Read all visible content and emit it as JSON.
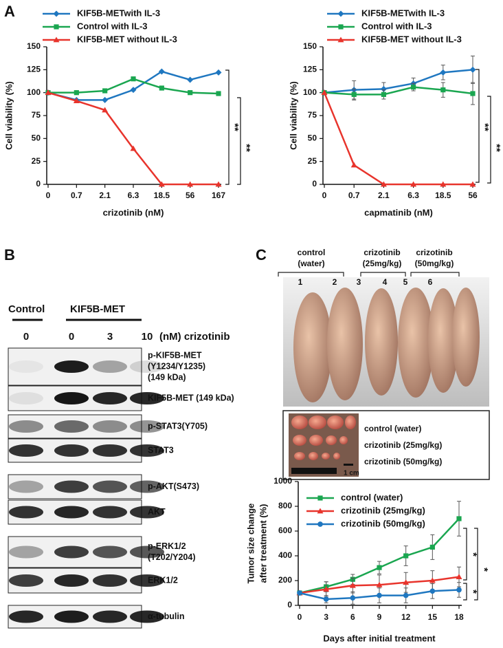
{
  "panel_labels": [
    "A",
    "B",
    "C"
  ],
  "chart_data": [
    {
      "type": "line",
      "xlabel": "crizotinib (nM)",
      "ylabel": "Cell viability (%)",
      "categories": [
        "0",
        "0.7",
        "2.1",
        "6.3",
        "18.5",
        "56",
        "167"
      ],
      "ylim": [
        0,
        150
      ],
      "yticks": [
        0,
        25,
        50,
        75,
        100,
        125,
        150
      ],
      "series": [
        {
          "name": "KIF5B-METwith IL-3",
          "color": "#1f77c0",
          "marker": "diamond",
          "values": [
            100,
            92,
            92,
            103,
            123,
            114,
            122
          ]
        },
        {
          "name": "Control with IL-3",
          "color": "#1aa650",
          "marker": "square",
          "values": [
            100,
            100,
            102,
            115,
            105,
            100,
            99
          ]
        },
        {
          "name": "KIF5B-MET without IL-3",
          "color": "#e8342c",
          "marker": "triangle",
          "values": [
            100,
            91,
            81,
            39,
            0,
            0,
            0
          ]
        }
      ],
      "annotations": [
        "**",
        "**"
      ]
    },
    {
      "type": "line",
      "xlabel": "capmatinib (nM)",
      "ylabel": "Cell viability (%)",
      "categories": [
        "0",
        "0.7",
        "2.1",
        "6.3",
        "18.5",
        "56"
      ],
      "ylim": [
        0,
        150
      ],
      "yticks": [
        0,
        25,
        50,
        75,
        100,
        125,
        150
      ],
      "series": [
        {
          "name": "KIF5B-METwith IL-3",
          "color": "#1f77c0",
          "marker": "diamond",
          "values": [
            100,
            103,
            104,
            110,
            122,
            125
          ],
          "errors": [
            2,
            10,
            7,
            6,
            8,
            15
          ]
        },
        {
          "name": "Control with IL-3",
          "color": "#1aa650",
          "marker": "square",
          "values": [
            100,
            98,
            98,
            106,
            103,
            99
          ],
          "errors": [
            2,
            6,
            5,
            4,
            8,
            12
          ]
        },
        {
          "name": "KIF5B-MET without IL-3",
          "color": "#e8342c",
          "marker": "triangle",
          "values": [
            100,
            21,
            0,
            0,
            0,
            0
          ]
        }
      ],
      "annotations": [
        "**",
        "**"
      ]
    },
    {
      "type": "line",
      "xlabel": "Days after initial treatment",
      "ylabel": [
        "Tumor size change",
        "after treatment (%)"
      ],
      "x": [
        0,
        3,
        6,
        9,
        12,
        15,
        18
      ],
      "xlim": [
        0,
        18
      ],
      "xticks": [
        0,
        3,
        6,
        9,
        12,
        15,
        18
      ],
      "ylim": [
        0,
        1000
      ],
      "yticks": [
        0,
        200,
        400,
        600,
        800,
        1000
      ],
      "series": [
        {
          "name": "control (water)",
          "color": "#1aa650",
          "marker": "square",
          "values": [
            100,
            150,
            210,
            305,
            400,
            470,
            700
          ],
          "errors": [
            10,
            40,
            40,
            50,
            80,
            100,
            140
          ]
        },
        {
          "name": "crizotinib (25mg/kg)",
          "color": "#e8342c",
          "marker": "triangle",
          "values": [
            100,
            130,
            160,
            165,
            185,
            200,
            230
          ],
          "errors": [
            10,
            60,
            60,
            80,
            80,
            80,
            80
          ]
        },
        {
          "name": "crizotinib (50mg/kg)",
          "color": "#1f77c0",
          "marker": "circle",
          "values": [
            100,
            50,
            60,
            80,
            80,
            115,
            125
          ],
          "errors": [
            10,
            30,
            50,
            60,
            60,
            60,
            60
          ]
        }
      ],
      "annotations": [
        "*",
        "*",
        "*"
      ]
    }
  ],
  "blot": {
    "groups": [
      "Control",
      "KIF5B-MET"
    ],
    "lanes": [
      "0",
      "0",
      "3",
      "10"
    ],
    "unit": "(nM) crizotinib",
    "rows": [
      [
        "p-KIF5B-MET",
        "(Y1234/Y1235)",
        "(149 kDa)"
      ],
      [
        "KIF5B-MET (149 kDa)"
      ],
      [
        "p-STAT3(Y705)"
      ],
      [
        "STAT3"
      ],
      [
        "p-AKT(S473)"
      ],
      [
        "AKT"
      ],
      [
        "p-ERK1/2",
        "(T202/Y204)"
      ],
      [
        "ERK1/2"
      ],
      [
        "α-tubulin"
      ]
    ]
  },
  "photo": {
    "groups": [
      [
        "control",
        "(water)"
      ],
      [
        "crizotinib",
        "(25mg/kg)"
      ],
      [
        "crizotinib",
        "(50mg/kg)"
      ]
    ],
    "mice": [
      "1",
      "2",
      "3",
      "4",
      "5",
      "6"
    ],
    "legend": [
      "control (water)",
      "crizotinib (25mg/kg)",
      "crizotinib (50mg/kg)"
    ],
    "scale": "1 cm"
  }
}
